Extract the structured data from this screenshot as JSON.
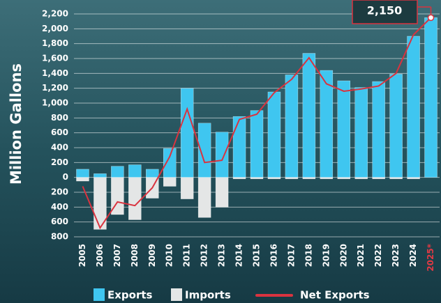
{
  "chart_data": {
    "type": "bar_line",
    "y_label": "Million Gallons",
    "categories": [
      "2005",
      "2006",
      "2007",
      "2008",
      "2009",
      "2010",
      "2011",
      "2012",
      "2013",
      "2014",
      "2015",
      "2016",
      "2017",
      "2018",
      "2019",
      "2020",
      "2021",
      "2022",
      "2023",
      "2024",
      "2025*"
    ],
    "series": [
      {
        "name": "Exports",
        "type": "bar",
        "color": "#3fc6f0",
        "values": [
          110,
          50,
          150,
          170,
          110,
          390,
          1200,
          730,
          610,
          820,
          900,
          1150,
          1380,
          1670,
          1440,
          1300,
          1210,
          1290,
          1390,
          1900,
          2150
        ],
        "value_labels": [
          null,
          null,
          null,
          null,
          null,
          null,
          null,
          null,
          null,
          null,
          null,
          null,
          null,
          null,
          null,
          null,
          null,
          null,
          null,
          null,
          "2,150"
        ]
      },
      {
        "name": "Imports",
        "type": "bar",
        "color": "#e4e6e6",
        "values": [
          -50,
          -700,
          -500,
          -570,
          -280,
          -120,
          -290,
          -540,
          -400,
          -20,
          -20,
          -20,
          -20,
          -20,
          -20,
          -20,
          -20,
          -20,
          -20,
          -20,
          0
        ]
      },
      {
        "name": "Net Exports",
        "type": "line",
        "color": "#d9333f",
        "values": [
          -120,
          -680,
          -330,
          -380,
          -140,
          280,
          920,
          200,
          230,
          780,
          850,
          1140,
          1320,
          1610,
          1260,
          1160,
          1190,
          1230,
          1400,
          1920,
          2150
        ]
      }
    ],
    "ylim": [
      -800,
      2200
    ],
    "yticks": [
      {
        "value": 2200,
        "label": "2,200"
      },
      {
        "value": 2000,
        "label": "2,000"
      },
      {
        "value": 1800,
        "label": "1,800"
      },
      {
        "value": 1600,
        "label": "1,600"
      },
      {
        "value": 1400,
        "label": "1,400"
      },
      {
        "value": 1200,
        "label": "1,200"
      },
      {
        "value": 1000,
        "label": "1,000"
      },
      800,
      600,
      400,
      200,
      0,
      {
        "value": -200,
        "label": "200"
      },
      {
        "value": -400,
        "label": "400"
      },
      {
        "value": -600,
        "label": "600"
      },
      {
        "value": -800,
        "label": "800"
      }
    ],
    "grid": true
  }
}
